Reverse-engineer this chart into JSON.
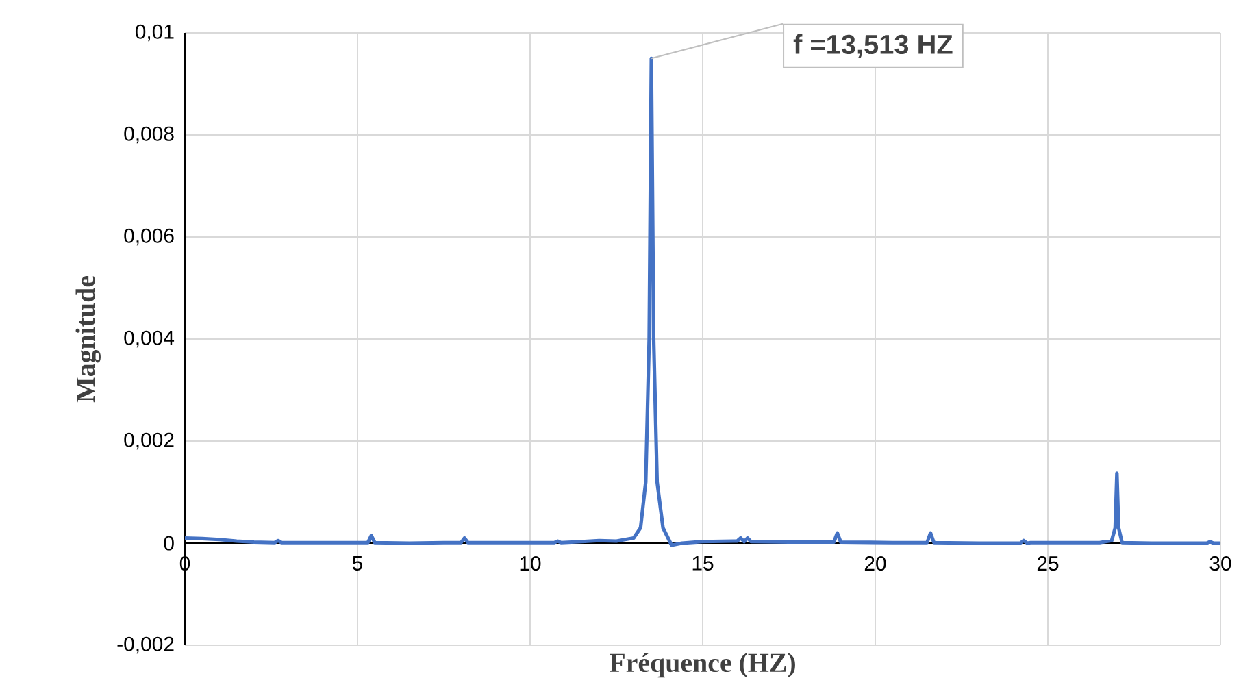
{
  "chart_data": {
    "type": "line",
    "xlabel": "Fréquence (HZ)",
    "ylabel": "Magnitude",
    "xlim": [
      0,
      30
    ],
    "xticks": [
      0,
      5,
      10,
      15,
      20,
      25,
      30
    ],
    "ylim": [
      -0.002,
      0.01
    ],
    "yticks": [
      {
        "value": -0.002,
        "label": "-0,002"
      },
      {
        "value": 0,
        "label": "0"
      },
      {
        "value": 0.002,
        "label": "0,002"
      },
      {
        "value": 0.004,
        "label": "0,004"
      },
      {
        "value": 0.006,
        "label": "0,006"
      },
      {
        "value": 0.008,
        "label": "0,008"
      },
      {
        "value": 0.01,
        "label": "0,01"
      }
    ],
    "grid": true,
    "annotations": [
      {
        "text": "f =13,513 HZ",
        "x": 13.513,
        "y": 0.0095
      }
    ],
    "series": [
      {
        "color": "#4472c4",
        "x": [
          0,
          0.5,
          1,
          1.5,
          2,
          2.6,
          2.7,
          2.8,
          3.5,
          4.5,
          5.3,
          5.4,
          5.5,
          6.5,
          7.5,
          8.0,
          8.1,
          8.2,
          9.5,
          10.7,
          10.8,
          10.9,
          11.5,
          12,
          12.5,
          13,
          13.2,
          13.35,
          13.45,
          13.513,
          13.58,
          13.68,
          13.85,
          14.1,
          14.4,
          15,
          15.9,
          16.0,
          16.1,
          16.2,
          16.3,
          16.4,
          17.5,
          18.8,
          18.9,
          19,
          20.5,
          21.5,
          21.6,
          21.7,
          23,
          24.2,
          24.3,
          24.4,
          24.5,
          25.5,
          26.5,
          26.85,
          26.95,
          27.0,
          27.05,
          27.15,
          28,
          29,
          29.6,
          29.7,
          29.8,
          30
        ],
        "values": [
          0.0001,
          9e-05,
          7e-05,
          4e-05,
          2e-05,
          1e-05,
          5e-05,
          1e-05,
          1e-05,
          1e-05,
          1e-05,
          0.00015,
          1e-05,
          0.0,
          1e-05,
          1e-05,
          0.0001,
          1e-05,
          1e-05,
          1e-05,
          4e-05,
          1e-05,
          3e-05,
          5e-05,
          4e-05,
          0.0001,
          0.0003,
          0.0012,
          0.004,
          0.0095,
          0.004,
          0.0012,
          0.0003,
          -4e-05,
          0.0,
          3e-05,
          4e-05,
          4e-05,
          0.0001,
          3e-05,
          0.0001,
          3e-05,
          2e-05,
          2e-05,
          0.0002,
          2e-05,
          1e-05,
          1e-05,
          0.0002,
          1e-05,
          0.0,
          0.0,
          5e-05,
          0.0,
          1e-05,
          1e-05,
          1e-05,
          5e-05,
          0.0003,
          0.00137,
          0.0003,
          1e-05,
          0.0,
          0.0,
          0.0,
          3e-05,
          0.0,
          0.0
        ]
      }
    ]
  }
}
